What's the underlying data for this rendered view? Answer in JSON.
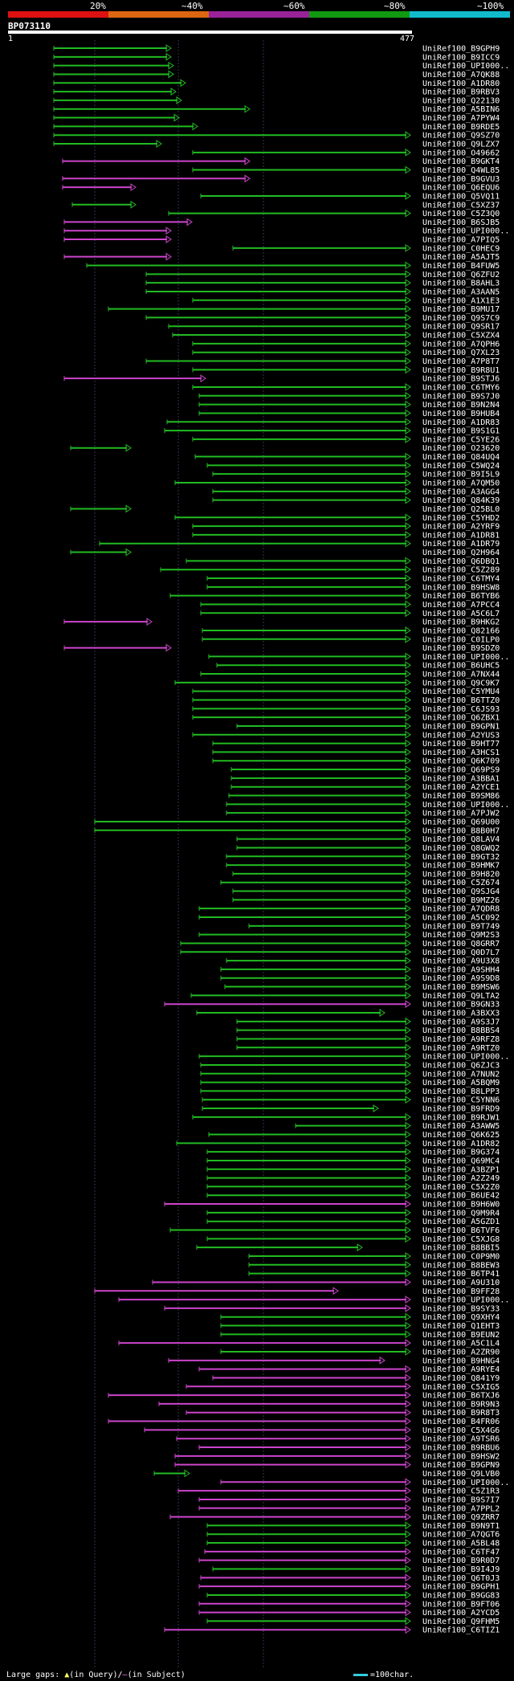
{
  "query": {
    "id": "BP073110",
    "start_label": "1",
    "end_label": "477",
    "length": 477
  },
  "identity_scale": [
    {
      "label": "20%",
      "color": "#dd1111"
    },
    {
      "label": "~40%",
      "color": "#dd6611"
    },
    {
      "label": "~60%",
      "color": "#992299"
    },
    {
      "label": "~80%",
      "color": "#119911"
    },
    {
      "label": "~100%",
      "color": "#11bbcc"
    }
  ],
  "footer": {
    "gaps_label": "Large gaps:",
    "in_query": "(in Query)/",
    "in_subject": "(in Subject)",
    "legend": "=100char."
  },
  "colors": {
    "cyan": "#33ccdd",
    "green": "#22bb22",
    "magenta": "#cc44cc"
  },
  "hits": [
    [
      "UniRef100_B9GPH9",
      "g",
      67,
      212
    ],
    [
      "UniRef100_B9ICC9",
      "g",
      67,
      212
    ],
    [
      "UniRef100_UPI000..",
      "g",
      67,
      215
    ],
    [
      "UniRef100_A7QK88",
      "g",
      67,
      215
    ],
    [
      "UniRef100_A1DR80",
      "g",
      67,
      230
    ],
    [
      "UniRef100_B9RBV3",
      "g",
      67,
      218
    ],
    [
      "UniRef100_Q22130",
      "g",
      67,
      225
    ],
    [
      "UniRef100_A5BIN6",
      "g",
      67,
      310
    ],
    [
      "UniRef100_A7PYW4",
      "g",
      67,
      222
    ],
    [
      "UniRef100_B9RDE5",
      "g",
      67,
      245
    ],
    [
      "UniRef100_Q9SZ70",
      "g",
      67,
      510
    ],
    [
      "UniRef100_Q9LZX7",
      "g",
      67,
      200
    ],
    [
      "UniRef100_O49662",
      "g",
      240,
      510
    ],
    [
      "UniRef100_B9GKT4",
      "m",
      78,
      310
    ],
    [
      "UniRef100_Q4WL85",
      "g",
      240,
      510
    ],
    [
      "UniRef100_B9GVU3",
      "m",
      78,
      310
    ],
    [
      "UniRef100_Q6EQU6",
      "m",
      78,
      168
    ],
    [
      "UniRef100_Q5VQ11",
      "g",
      250,
      510
    ],
    [
      "UniRef100_C5XZ37",
      "g",
      90,
      168
    ],
    [
      "UniRef100_C5Z3Q0",
      "g",
      210,
      510
    ],
    [
      "UniRef100_B6SJB5",
      "m",
      80,
      238
    ],
    [
      "UniRef100_UPI000..",
      "m",
      80,
      212
    ],
    [
      "UniRef100_A7PIQ5",
      "m",
      80,
      212
    ],
    [
      "UniRef100_C0HEC9",
      "g",
      290,
      510
    ],
    [
      "UniRef100_A5AJT5",
      "m",
      80,
      212
    ],
    [
      "UniRef100_B4FUW5",
      "g",
      108,
      510
    ],
    [
      "UniRef100_Q6ZFU2",
      "g",
      182,
      510
    ],
    [
      "UniRef100_B8AHL3",
      "g",
      182,
      510
    ],
    [
      "UniRef100_A3AAN5",
      "g",
      182,
      510
    ],
    [
      "UniRef100_A1X1E3",
      "g",
      240,
      510
    ],
    [
      "UniRef100_B9MU17",
      "g",
      135,
      510
    ],
    [
      "UniRef100_Q9S7C9",
      "g",
      182,
      510
    ],
    [
      "UniRef100_Q9SR17",
      "g",
      210,
      510
    ],
    [
      "UniRef100_C5XZX4",
      "g",
      215,
      510
    ],
    [
      "UniRef100_A7QPH6",
      "g",
      240,
      510
    ],
    [
      "UniRef100_Q7XL23",
      "g",
      240,
      510
    ],
    [
      "UniRef100_A7P8T7",
      "g",
      182,
      510
    ],
    [
      "UniRef100_B9R8U1",
      "g",
      240,
      510
    ],
    [
      "UniRef100_B9STJ6",
      "m",
      80,
      255
    ],
    [
      "UniRef100_C6TMY6",
      "g",
      240,
      510
    ],
    [
      "UniRef100_B9S7J0",
      "g",
      248,
      510
    ],
    [
      "UniRef100_B9N2N4",
      "g",
      248,
      510
    ],
    [
      "UniRef100_B9HUB4",
      "g",
      248,
      510
    ],
    [
      "UniRef100_A1DR83",
      "g",
      208,
      510
    ],
    [
      "UniRef100_B9S1G1",
      "g",
      205,
      510
    ],
    [
      "UniRef100_C5YE26",
      "g",
      240,
      510
    ],
    [
      "UniRef100_O23620",
      "g",
      88,
      162
    ],
    [
      "UniRef100_Q84UQ4",
      "g",
      243,
      510
    ],
    [
      "UniRef100_C5WQ24",
      "g",
      258,
      510
    ],
    [
      "UniRef100_B9I5L9",
      "g",
      265,
      510
    ],
    [
      "UniRef100_A7QM50",
      "g",
      218,
      510
    ],
    [
      "UniRef100_A3AGG4",
      "g",
      265,
      510
    ],
    [
      "UniRef100_Q84K39",
      "g",
      265,
      510
    ],
    [
      "UniRef100_Q25BL0",
      "g",
      88,
      162
    ],
    [
      "UniRef100_C5YHD2",
      "g",
      218,
      510
    ],
    [
      "UniRef100_A2YRF9",
      "g",
      240,
      510
    ],
    [
      "UniRef100_A1DR81",
      "g",
      240,
      510
    ],
    [
      "UniRef100_A1DR79",
      "g",
      124,
      510
    ],
    [
      "UniRef100_Q2H964",
      "g",
      88,
      162
    ],
    [
      "UniRef100_Q6DBQ1",
      "g",
      232,
      510
    ],
    [
      "UniRef100_C5Z289",
      "g",
      200,
      510
    ],
    [
      "UniRef100_C6TMY4",
      "g",
      258,
      510
    ],
    [
      "UniRef100_B9HSW8",
      "g",
      258,
      510
    ],
    [
      "UniRef100_B6TYB6",
      "g",
      212,
      510
    ],
    [
      "UniRef100_A7PCC4",
      "g",
      250,
      510
    ],
    [
      "UniRef100_A5C6L7",
      "g",
      250,
      510
    ],
    [
      "UniRef100_B9HKG2",
      "m",
      80,
      188
    ],
    [
      "UniRef100_Q82166",
      "g",
      252,
      510
    ],
    [
      "UniRef100_C0ILP0",
      "g",
      252,
      510
    ],
    [
      "UniRef100_B9SDZ0",
      "m",
      80,
      212
    ],
    [
      "UniRef100_UPI000..",
      "g",
      260,
      510
    ],
    [
      "UniRef100_B6UHC5",
      "g",
      270,
      510
    ],
    [
      "UniRef100_A7NX44",
      "g",
      250,
      510
    ],
    [
      "UniRef100_Q9C9K7",
      "g",
      218,
      510
    ],
    [
      "UniRef100_C5YMU4",
      "g",
      240,
      510
    ],
    [
      "UniRef100_B6TTZ0",
      "g",
      240,
      510
    ],
    [
      "UniRef100_C6JS93",
      "g",
      240,
      510
    ],
    [
      "UniRef100_Q6ZBX1",
      "g",
      240,
      510
    ],
    [
      "UniRef100_B9GPN1",
      "g",
      295,
      510
    ],
    [
      "UniRef100_A2YUS3",
      "g",
      240,
      510
    ],
    [
      "UniRef100_B9HT77",
      "g",
      265,
      510
    ],
    [
      "UniRef100_A3HCS1",
      "g",
      265,
      510
    ],
    [
      "UniRef100_Q6K709",
      "g",
      265,
      510
    ],
    [
      "UniRef100_Q69PS9",
      "g",
      288,
      510
    ],
    [
      "UniRef100_A3BBA1",
      "g",
      288,
      510
    ],
    [
      "UniRef100_A2YCE1",
      "g",
      288,
      510
    ],
    [
      "UniRef100_B9SM86",
      "g",
      285,
      510
    ],
    [
      "UniRef100_UPI000..",
      "g",
      282,
      510
    ],
    [
      "UniRef100_A7PJW2",
      "g",
      282,
      510
    ],
    [
      "UniRef100_Q69U00",
      "g",
      118,
      510
    ],
    [
      "UniRef100_B8B0H7",
      "g",
      118,
      510
    ],
    [
      "UniRef100_Q8LAV4",
      "g",
      295,
      510
    ],
    [
      "UniRef100_Q8GWQ2",
      "g",
      295,
      510
    ],
    [
      "UniRef100_B9GT32",
      "g",
      282,
      510
    ],
    [
      "UniRef100_B9HMK7",
      "g",
      282,
      510
    ],
    [
      "UniRef100_B9H820",
      "g",
      290,
      510
    ],
    [
      "UniRef100_C5Z674",
      "g",
      275,
      510
    ],
    [
      "UniRef100_Q9SJG4",
      "g",
      290,
      510
    ],
    [
      "UniRef100_B9MZ26",
      "g",
      290,
      510
    ],
    [
      "UniRef100_A7QDR8",
      "g",
      248,
      510
    ],
    [
      "UniRef100_A5C092",
      "g",
      248,
      510
    ],
    [
      "UniRef100_B9T749",
      "g",
      310,
      510
    ],
    [
      "UniRef100_Q9M2S3",
      "g",
      248,
      510
    ],
    [
      "UniRef100_Q8GRR7",
      "g",
      225,
      510
    ],
    [
      "UniRef100_Q0D7L7",
      "g",
      225,
      510
    ],
    [
      "UniRef100_A9U3X8",
      "g",
      282,
      510
    ],
    [
      "UniRef100_A9SHH4",
      "g",
      275,
      510
    ],
    [
      "UniRef100_A9S9D8",
      "g",
      275,
      510
    ],
    [
      "UniRef100_B9MSW6",
      "g",
      280,
      510
    ],
    [
      "UniRef100_Q9LTA2",
      "g",
      238,
      510
    ],
    [
      "UniRef100_B9GN33",
      "m",
      205,
      510
    ],
    [
      "UniRef100_A3BXX3",
      "g",
      245,
      478
    ],
    [
      "UniRef100_A9S3J7",
      "g",
      295,
      510
    ],
    [
      "UniRef100_B8BBS4",
      "g",
      295,
      510
    ],
    [
      "UniRef100_A9RFZ8",
      "g",
      295,
      510
    ],
    [
      "UniRef100_A9RTZ0",
      "g",
      295,
      510
    ],
    [
      "UniRef100_UPI000..",
      "g",
      248,
      510
    ],
    [
      "UniRef100_Q6ZJC3",
      "g",
      250,
      510
    ],
    [
      "UniRef100_A7NUN2",
      "g",
      250,
      510
    ],
    [
      "UniRef100_A5BQM9",
      "g",
      250,
      510
    ],
    [
      "UniRef100_B8LPP3",
      "g",
      250,
      510
    ],
    [
      "UniRef100_C5YNN6",
      "g",
      252,
      510
    ],
    [
      "UniRef100_B9FRD9",
      "g",
      252,
      470
    ],
    [
      "UniRef100_B9RJW1",
      "g",
      240,
      510
    ],
    [
      "UniRef100_A3AWW5",
      "g",
      368,
      510
    ],
    [
      "UniRef100_Q6K625",
      "g",
      260,
      510
    ],
    [
      "UniRef100_A1DR82",
      "g",
      220,
      510
    ],
    [
      "UniRef100_B9G374",
      "g",
      258,
      510
    ],
    [
      "UniRef100_Q69MC4",
      "g",
      258,
      510
    ],
    [
      "UniRef100_A3BZP1",
      "g",
      258,
      510
    ],
    [
      "UniRef100_A2Z249",
      "g",
      258,
      510
    ],
    [
      "UniRef100_C5X2Z0",
      "g",
      258,
      510
    ],
    [
      "UniRef100_B6UE42",
      "g",
      258,
      510
    ],
    [
      "UniRef100_B9H6W0",
      "m",
      205,
      510
    ],
    [
      "UniRef100_Q9M9R4",
      "g",
      258,
      510
    ],
    [
      "UniRef100_A5GZD1",
      "g",
      258,
      510
    ],
    [
      "UniRef100_B6TVF6",
      "g",
      212,
      510
    ],
    [
      "UniRef100_C5XJG8",
      "g",
      258,
      510
    ],
    [
      "UniRef100_B8BBI5",
      "g",
      245,
      450
    ],
    [
      "UniRef100_C0P9M0",
      "g",
      310,
      510
    ],
    [
      "UniRef100_B8BEW3",
      "g",
      310,
      510
    ],
    [
      "UniRef100_B6TP41",
      "g",
      310,
      510
    ],
    [
      "UniRef100_A9U310",
      "m",
      190,
      510
    ],
    [
      "UniRef100_B9FF28",
      "m",
      118,
      420
    ],
    [
      "UniRef100_UPI000..",
      "m",
      148,
      510
    ],
    [
      "UniRef100_B9SY33",
      "m",
      205,
      510
    ],
    [
      "UniRef100_Q9XHY4",
      "g",
      275,
      510
    ],
    [
      "UniRef100_Q1EHT3",
      "g",
      275,
      510
    ],
    [
      "UniRef100_B9EUN2",
      "g",
      275,
      510
    ],
    [
      "UniRef100_A5C1L4",
      "m",
      148,
      510
    ],
    [
      "UniRef100_A2ZR90",
      "g",
      275,
      510
    ],
    [
      "UniRef100_B9HNG4",
      "m",
      210,
      478
    ],
    [
      "UniRef100_A9RYE4",
      "m",
      248,
      510
    ],
    [
      "UniRef100_Q841Y9",
      "m",
      265,
      510
    ],
    [
      "UniRef100_C5XIG5",
      "m",
      232,
      510
    ],
    [
      "UniRef100_B6TXJ6",
      "m",
      135,
      510
    ],
    [
      "UniRef100_B9R9N3",
      "m",
      198,
      510
    ],
    [
      "UniRef100_B9R8T3",
      "m",
      232,
      510
    ],
    [
      "UniRef100_B4FR06",
      "m",
      135,
      510
    ],
    [
      "UniRef100_C5X4G6",
      "m",
      180,
      510
    ],
    [
      "UniRef100_A9TSR6",
      "m",
      220,
      510
    ],
    [
      "UniRef100_B9RBU6",
      "m",
      248,
      510
    ],
    [
      "UniRef100_B9HSW2",
      "m",
      218,
      510
    ],
    [
      "UniRef100_B9GPN9",
      "m",
      218,
      510
    ],
    [
      "UniRef100_Q9LVB0",
      "g",
      192,
      235
    ],
    [
      "UniRef100_UPI000..",
      "m",
      275,
      510
    ],
    [
      "UniRef100_C5Z1R3",
      "m",
      222,
      510
    ],
    [
      "UniRef100_B9S7I7",
      "m",
      248,
      510
    ],
    [
      "UniRef100_A7PPL2",
      "m",
      248,
      510
    ],
    [
      "UniRef100_Q9ZRR7",
      "m",
      212,
      510
    ],
    [
      "UniRef100_B9N9T1",
      "g",
      258,
      510
    ],
    [
      "UniRef100_A7QGT6",
      "g",
      258,
      510
    ],
    [
      "UniRef100_A5BL48",
      "g",
      258,
      510
    ],
    [
      "UniRef100_C6TF47",
      "m",
      255,
      510
    ],
    [
      "UniRef100_B9R0D7",
      "m",
      248,
      510
    ],
    [
      "UniRef100_B9I4J9",
      "g",
      265,
      510
    ],
    [
      "UniRef100_Q6T0J3",
      "m",
      250,
      510
    ],
    [
      "UniRef100_B9GPH1",
      "m",
      248,
      510
    ],
    [
      "UniRef100_B9GG83",
      "g",
      258,
      510
    ],
    [
      "UniRef100_B9FT06",
      "m",
      248,
      510
    ],
    [
      "UniRef100_A2YCD5",
      "m",
      248,
      510
    ],
    [
      "UniRef100_Q9FHM5",
      "g",
      258,
      510
    ],
    [
      "UniRef100_C6TIZ1",
      "m",
      205,
      510
    ]
  ]
}
